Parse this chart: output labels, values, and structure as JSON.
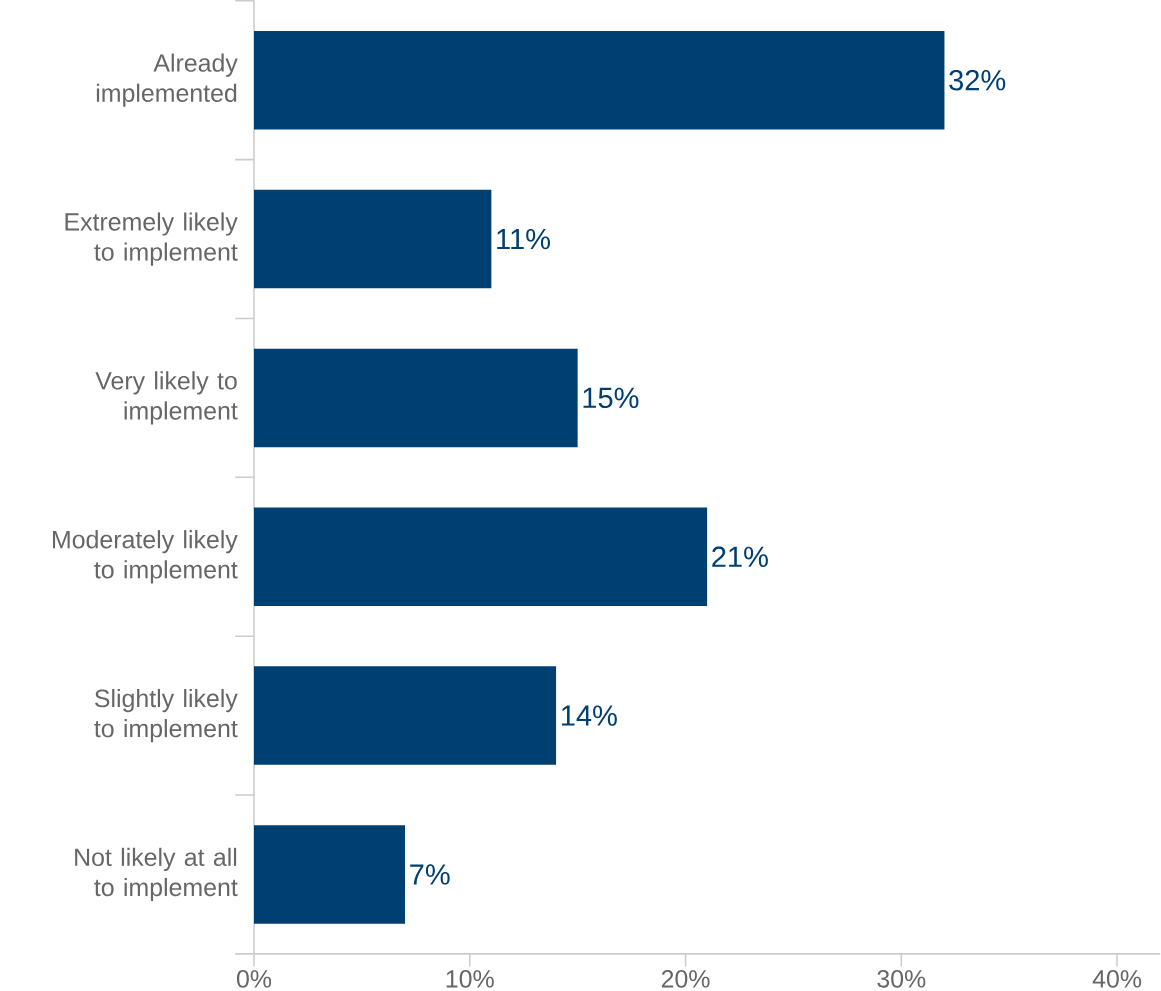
{
  "chart_data": {
    "type": "bar",
    "orientation": "horizontal",
    "categories": [
      "Already implemented",
      "Extremely likely to implement",
      "Very likely to implement",
      "Moderately likely to implement",
      "Slightly likely to implement",
      "Not likely at all to implement"
    ],
    "values": [
      32,
      11,
      15,
      21,
      14,
      7
    ],
    "value_labels": [
      "32%",
      "11%",
      "15%",
      "21%",
      "14%",
      "7%"
    ],
    "color": "#003f72",
    "xlim": [
      0,
      42
    ],
    "xticks": [
      {
        "value": 0,
        "label": "0%"
      },
      {
        "value": 10,
        "label": "10%"
      },
      {
        "value": 20,
        "label": "20%"
      },
      {
        "value": 30,
        "label": "30%"
      },
      {
        "value": 40,
        "label": "40%"
      }
    ],
    "data_labels": false
  }
}
